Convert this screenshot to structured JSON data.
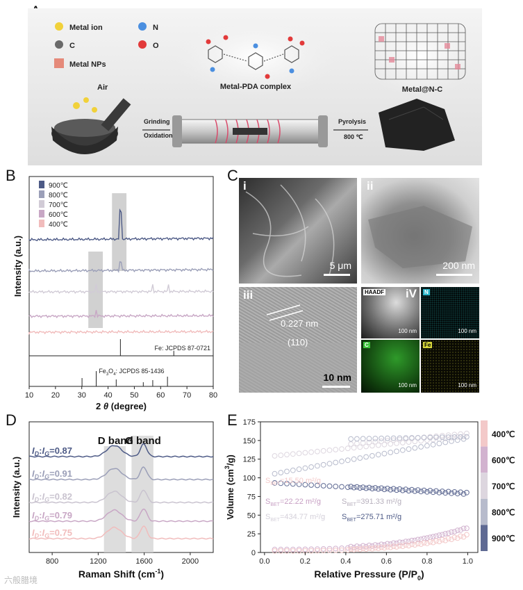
{
  "panels": {
    "a": "A",
    "b": "B",
    "c": "C",
    "d": "D",
    "e": "E"
  },
  "schematic": {
    "legend": [
      {
        "name": "Metal ion",
        "color": "#f1d13a"
      },
      {
        "name": "N",
        "color": "#4b8fe0"
      },
      {
        "name": "C",
        "color": "#6a6a6a"
      },
      {
        "name": "O",
        "color": "#e23a3a"
      },
      {
        "name": "Metal NPs",
        "color": "#e58a7a"
      }
    ],
    "air": "Air",
    "grinding": "Grinding",
    "oxidation": "Oxidation",
    "complex": "Metal-PDA complex",
    "pyrolysis": "Pyrolysis",
    "temp": "800 ℃",
    "product": "Metal@N-C"
  },
  "xrd": {
    "ylabel": "Intensity (a.u.)",
    "xlabel_pre": "2 ",
    "xlabel_theta": "θ",
    "xlabel_post": " (degree)",
    "xticks": [
      10,
      20,
      30,
      40,
      50,
      60,
      70,
      80
    ],
    "legend": [
      {
        "name": "900℃",
        "color": "#4d5a86"
      },
      {
        "name": "800℃",
        "color": "#9b9fb8"
      },
      {
        "name": "700℃",
        "color": "#d1cbd6"
      },
      {
        "name": "600℃",
        "color": "#c8a7c5"
      },
      {
        "name": "400℃",
        "color": "#f1bcbc"
      }
    ],
    "ref1": "Fe: JCPDS 87-0721",
    "ref2_a": "Fe",
    "ref2_sub1": "3",
    "ref2_b": "O",
    "ref2_sub2": "4",
    "ref2_c": ": JCPDS 85-1436"
  },
  "micro": {
    "i": "i",
    "ii": "ii",
    "iii": "iii",
    "iv": "iV",
    "scale_i": "5 μm",
    "scale_ii": "200 nm",
    "scale_iii": "10 nm",
    "d_spacing": "0.227 nm",
    "plane": "(110)",
    "haadf": "HAADF",
    "n": "N",
    "c": "C",
    "fe": "Fe",
    "scale_map": "100 nm"
  },
  "raman": {
    "ylabel": "Intensity (a.u.)",
    "xlabel_pre": "Raman Shift (cm",
    "xlabel_sup": "-1",
    "xlabel_post": ")",
    "xticks": [
      800,
      1200,
      1600,
      2000
    ],
    "dband": "D band",
    "gband": "G band",
    "ratio_i": "I",
    "ratio_d": "D",
    "ratio_colon": ":",
    "ratio_g": "G",
    "ratios": [
      {
        "value": "=0.87",
        "color": "#4d5a86"
      },
      {
        "value": "=0.91",
        "color": "#9b9fb8"
      },
      {
        "value": "=0.82",
        "color": "#c9c3cf"
      },
      {
        "value": "=0.79",
        "color": "#c8a7c5"
      },
      {
        "value": "=0.75",
        "color": "#f1bcbc"
      }
    ]
  },
  "bet": {
    "ylabel_pre": "Volume (cm",
    "ylabel_sup": "3",
    "ylabel_post": "/g)",
    "xlabel_pre": "Relative Pressure (P/P",
    "xlabel_sub": "0",
    "xlabel_post": ")",
    "xticks": [
      "0.0",
      "0.2",
      "0.4",
      "0.6",
      "0.8",
      "1.0"
    ],
    "yticks": [
      0,
      25,
      50,
      75,
      100,
      125,
      150,
      175
    ],
    "legend": [
      {
        "name": "400℃",
        "color": "#f3c9c9"
      },
      {
        "name": "600℃",
        "color": "#d2b3cf"
      },
      {
        "name": "700℃",
        "color": "#ddd6df"
      },
      {
        "name": "800℃",
        "color": "#b7bbcc"
      },
      {
        "name": "900℃",
        "color": "#5f6a93"
      }
    ],
    "s": "S",
    "bet_sub": "BET",
    "areas": [
      {
        "value": "=15.50 m²/g",
        "color": "#f3c9c9"
      },
      {
        "value": "=22.22 m²/g",
        "color": "#c79fc3"
      },
      {
        "value": "=391.33 m²/g",
        "color": "#b7b0bd"
      },
      {
        "value": "=434.77 m²/g",
        "color": "#d4d0da"
      },
      {
        "value": "=275.71 m²/g",
        "color": "#4d5a86"
      }
    ]
  },
  "watermark": "六般腊境"
}
